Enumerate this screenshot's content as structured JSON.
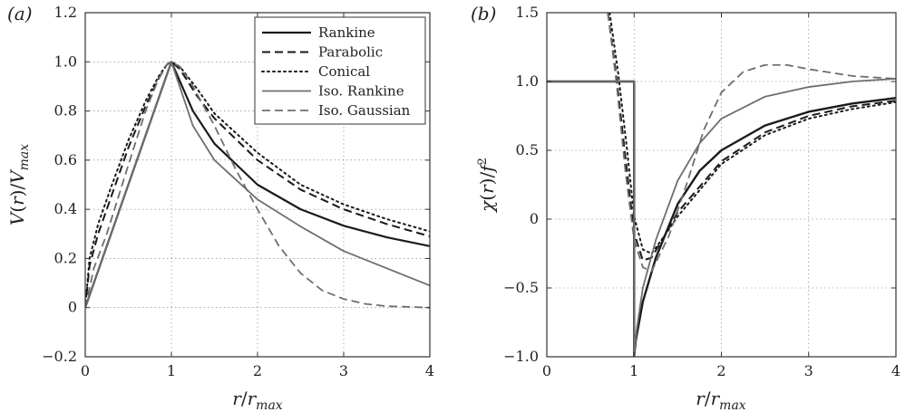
{
  "chart_data": [
    {
      "panel": "(a)",
      "type": "line",
      "xlabel": "r/r_max",
      "ylabel": "V(r)/V_max",
      "xlim": [
        0,
        4
      ],
      "ylim": [
        -0.2,
        1.2
      ],
      "xticks": [
        0,
        1,
        2,
        3,
        4
      ],
      "yticks": [
        -0.2,
        0,
        0.2,
        0.4,
        0.6,
        0.8,
        1.0,
        1.2
      ],
      "yticklabels": [
        "−0.2",
        "0",
        "0.2",
        "0.4",
        "0.6",
        "0.8",
        "1.0",
        "1.2"
      ],
      "grid": true,
      "legend_position": "top-right",
      "series": [
        {
          "name": "Rankine",
          "color": "#1a1a1a",
          "dash": "solid",
          "width": 2.2,
          "x": [
            0,
            0.5,
            1.0,
            1.25,
            1.5,
            2.0,
            2.5,
            3.0,
            3.5,
            4.0
          ],
          "y": [
            0,
            0.5,
            1.0,
            0.8,
            0.667,
            0.5,
            0.4,
            0.333,
            0.286,
            0.25
          ]
        },
        {
          "name": "Parabolic",
          "color": "#1a1a1a",
          "dash": "dashed",
          "width": 2.0,
          "x": [
            0,
            0.05,
            0.15,
            0.3,
            0.5,
            0.7,
            0.85,
            0.95,
            1.0,
            1.1,
            1.3,
            1.5,
            2.0,
            2.5,
            3.0,
            3.5,
            4.0
          ],
          "y": [
            0,
            0.17,
            0.3,
            0.45,
            0.65,
            0.82,
            0.93,
            0.99,
            1.0,
            0.97,
            0.86,
            0.77,
            0.6,
            0.48,
            0.4,
            0.34,
            0.29
          ]
        },
        {
          "name": "Conical",
          "color": "#1a1a1a",
          "dash": "dotted",
          "width": 2.0,
          "x": [
            0,
            0.05,
            0.15,
            0.3,
            0.5,
            0.7,
            0.85,
            0.95,
            1.0,
            1.1,
            1.3,
            1.5,
            2.0,
            2.5,
            3.0,
            3.5,
            4.0
          ],
          "y": [
            0,
            0.2,
            0.34,
            0.49,
            0.68,
            0.84,
            0.94,
            0.99,
            1.0,
            0.98,
            0.89,
            0.79,
            0.63,
            0.5,
            0.42,
            0.36,
            0.31
          ]
        },
        {
          "name": "Iso. Rankine",
          "color": "#6e6e6e",
          "dash": "solid",
          "width": 1.8,
          "x": [
            0,
            0.5,
            1.0,
            1.25,
            1.5,
            2.0,
            2.5,
            3.0,
            3.5,
            4.0
          ],
          "y": [
            0,
            0.5,
            1.0,
            0.74,
            0.6,
            0.44,
            0.33,
            0.23,
            0.16,
            0.09
          ]
        },
        {
          "name": "Iso. Gaussian",
          "color": "#6e6e6e",
          "dash": "dashed",
          "width": 1.8,
          "x": [
            0,
            0.1,
            0.25,
            0.5,
            0.7,
            0.85,
            0.95,
            1.0,
            1.1,
            1.25,
            1.5,
            1.75,
            2.0,
            2.25,
            2.5,
            2.75,
            3.0,
            3.25,
            3.5,
            4.0
          ],
          "y": [
            0,
            0.16,
            0.3,
            0.58,
            0.8,
            0.93,
            0.99,
            1.0,
            0.98,
            0.9,
            0.74,
            0.56,
            0.4,
            0.25,
            0.14,
            0.07,
            0.035,
            0.015,
            0.006,
            0.0
          ]
        }
      ]
    },
    {
      "panel": "(b)",
      "type": "line",
      "xlabel": "r/r_max",
      "ylabel": "χ(r)/f^2",
      "xlim": [
        0,
        4
      ],
      "ylim": [
        -1.0,
        1.5
      ],
      "xticks": [
        0,
        1,
        2,
        3,
        4
      ],
      "yticks": [
        -1.0,
        -0.5,
        0,
        0.5,
        1.0,
        1.5
      ],
      "yticklabels": [
        "−1.0",
        "−0.5",
        "0",
        "0.5",
        "1.0",
        "1.5"
      ],
      "grid": true,
      "series": [
        {
          "name": "Rankine",
          "color": "#1a1a1a",
          "dash": "solid",
          "width": 2.4,
          "x": [
            0,
            1.0,
            1.0,
            1.02,
            1.1,
            1.25,
            1.5,
            1.75,
            2.0,
            2.5,
            3.0,
            3.5,
            4.0
          ],
          "y": [
            1.0,
            1.0,
            -1.0,
            -0.88,
            -0.6,
            -0.28,
            0.11,
            0.35,
            0.5,
            0.68,
            0.78,
            0.84,
            0.88
          ]
        },
        {
          "name": "Parabolic",
          "color": "#1a1a1a",
          "dash": "dashed",
          "width": 2.0,
          "x": [
            0.7,
            0.8,
            0.9,
            1.0,
            1.1,
            1.2,
            1.35,
            1.5,
            2.0,
            2.5,
            3.0,
            3.5,
            4.0
          ],
          "y": [
            1.5,
            1.02,
            0.45,
            -0.1,
            -0.3,
            -0.28,
            -0.12,
            0.05,
            0.42,
            0.63,
            0.75,
            0.82,
            0.86
          ]
        },
        {
          "name": "Conical",
          "color": "#1a1a1a",
          "dash": "dotted",
          "width": 2.0,
          "x": [
            0.72,
            0.82,
            0.92,
            1.0,
            1.1,
            1.2,
            1.35,
            1.5,
            2.0,
            2.5,
            3.0,
            3.5,
            4.0
          ],
          "y": [
            1.5,
            1.05,
            0.5,
            0.02,
            -0.22,
            -0.25,
            -0.12,
            0.02,
            0.4,
            0.61,
            0.73,
            0.8,
            0.85
          ]
        },
        {
          "name": "Iso. Rankine",
          "color": "#6e6e6e",
          "dash": "solid",
          "width": 1.8,
          "x": [
            0,
            1.0,
            1.0,
            1.03,
            1.1,
            1.25,
            1.5,
            1.75,
            2.0,
            2.5,
            3.0,
            3.5,
            4.0
          ],
          "y": [
            1.0,
            1.0,
            -1.0,
            -0.8,
            -0.5,
            -0.15,
            0.28,
            0.55,
            0.73,
            0.89,
            0.96,
            1.0,
            1.02
          ]
        },
        {
          "name": "Iso. Gaussian",
          "color": "#6e6e6e",
          "dash": "dashed",
          "width": 1.8,
          "x": [
            0.7,
            0.8,
            0.9,
            1.0,
            1.1,
            1.2,
            1.4,
            1.6,
            1.8,
            2.0,
            2.25,
            2.5,
            2.75,
            3.0,
            3.5,
            4.0
          ],
          "y": [
            1.5,
            0.98,
            0.35,
            -0.15,
            -0.35,
            -0.38,
            -0.12,
            0.25,
            0.65,
            0.92,
            1.07,
            1.12,
            1.12,
            1.09,
            1.04,
            1.02
          ]
        }
      ]
    }
  ]
}
